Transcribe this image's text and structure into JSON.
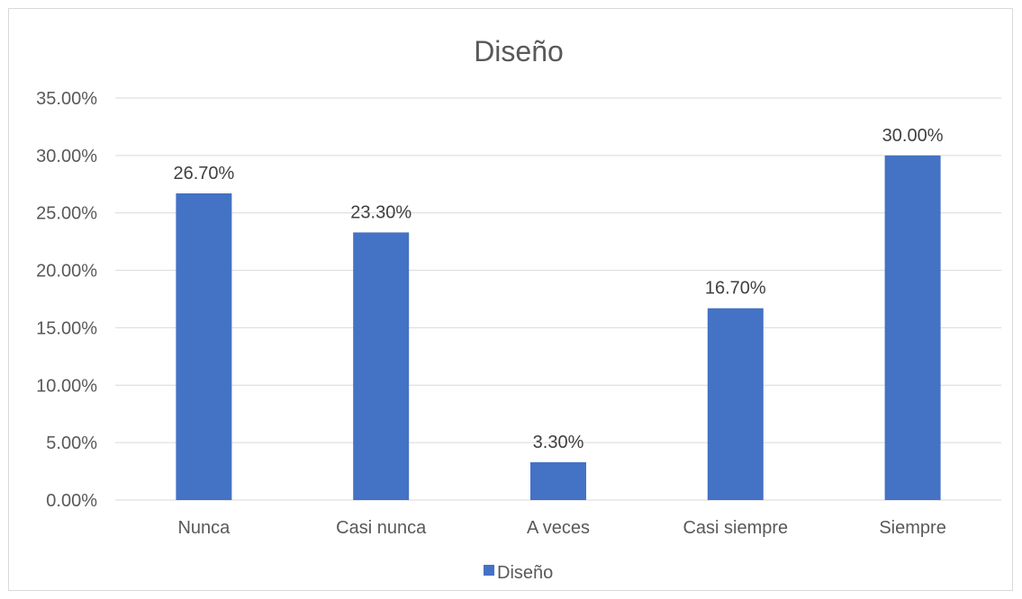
{
  "chart_data": {
    "type": "bar",
    "title": "Diseño",
    "categories": [
      "Nunca",
      "Casi nunca",
      "A veces",
      "Casi siempre",
      "Siempre"
    ],
    "series": [
      {
        "name": "Diseño",
        "values": [
          26.7,
          23.3,
          3.3,
          16.7,
          30.0
        ]
      }
    ],
    "data_labels": [
      "26.70%",
      "23.30%",
      "3.30%",
      "16.70%",
      "30.00%"
    ],
    "y_ticks": [
      "0.00%",
      "5.00%",
      "10.00%",
      "15.00%",
      "20.00%",
      "25.00%",
      "30.00%",
      "35.00%"
    ],
    "ylim": [
      0,
      35
    ],
    "grid": true,
    "legend_position": "bottom",
    "bar_color": "#4472c4"
  }
}
